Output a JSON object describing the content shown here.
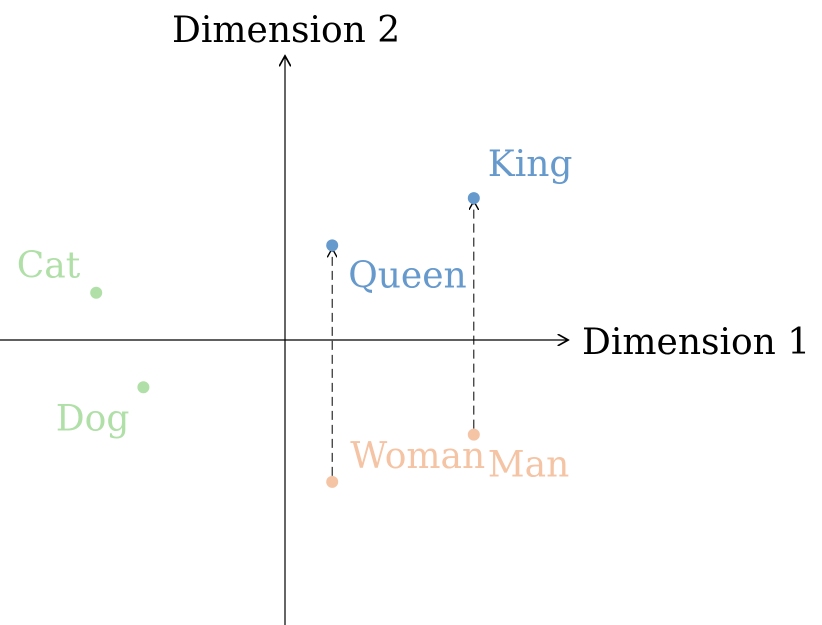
{
  "axes": {
    "x_label": "Dimension 1",
    "y_label": "Dimension 2"
  },
  "colors": {
    "royal": "#6699cc",
    "person": "#f4c4a4",
    "animal": "#b0e0a8",
    "axis": "#000000"
  },
  "points": [
    {
      "id": "king",
      "label": "King",
      "group": "royal",
      "x": 4,
      "y": 3
    },
    {
      "id": "queen",
      "label": "Queen",
      "group": "royal",
      "x": 1,
      "y": 2
    },
    {
      "id": "man",
      "label": "Man",
      "group": "person",
      "x": 4,
      "y": -2
    },
    {
      "id": "woman",
      "label": "Woman",
      "group": "person",
      "x": 1,
      "y": -3
    },
    {
      "id": "cat",
      "label": "Cat",
      "group": "animal",
      "x": -4,
      "y": 1
    },
    {
      "id": "dog",
      "label": "Dog",
      "group": "animal",
      "x": -3,
      "y": -1
    }
  ],
  "relations": [
    {
      "from": "woman",
      "to": "queen"
    },
    {
      "from": "man",
      "to": "king"
    }
  ]
}
